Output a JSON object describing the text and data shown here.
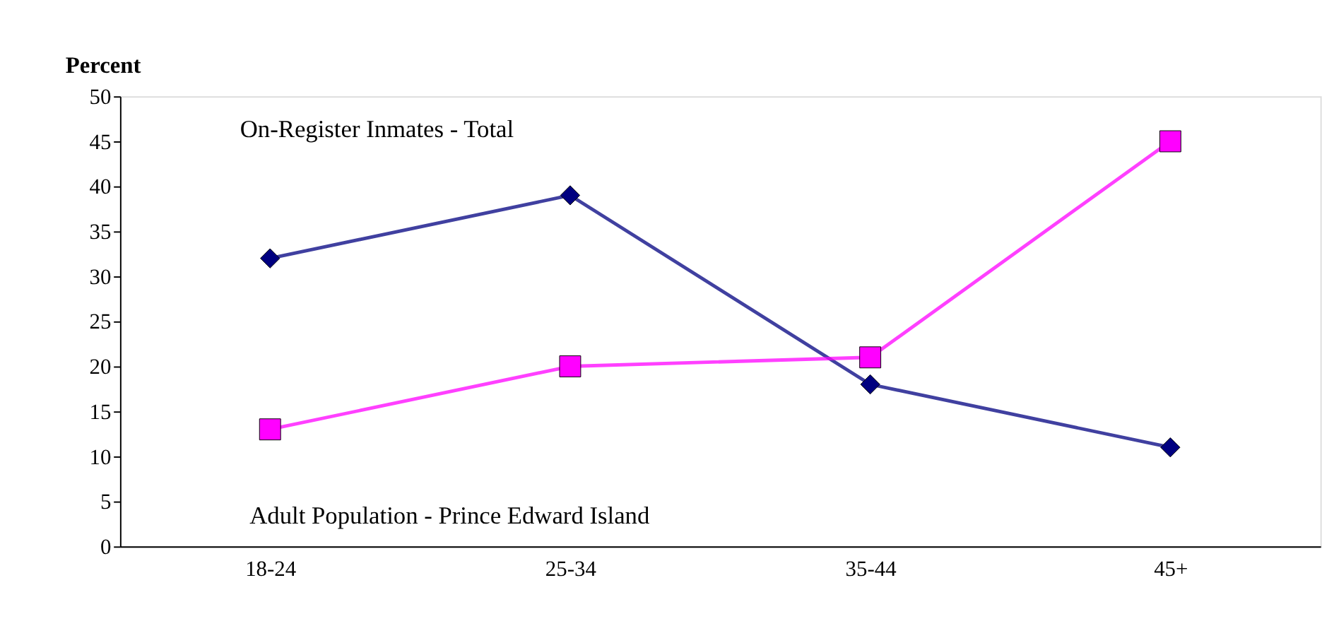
{
  "chart_data": {
    "type": "line",
    "ylabel": "Percent",
    "categories": [
      "18-24",
      "25-34",
      "35-44",
      "45+"
    ],
    "series": [
      {
        "name": "On-Register Inmates - Total",
        "color": "#000080",
        "marker": "diamond",
        "values": [
          32,
          39,
          18,
          11
        ]
      },
      {
        "name": "Adult Population - Prince Edward Island",
        "color": "#ff00ff",
        "marker": "square",
        "values": [
          13,
          20,
          21,
          45
        ]
      }
    ],
    "ylim": [
      0,
      50
    ],
    "yticks": [
      0,
      5,
      10,
      15,
      20,
      25,
      30,
      35,
      40,
      45,
      50
    ],
    "grid": false
  }
}
